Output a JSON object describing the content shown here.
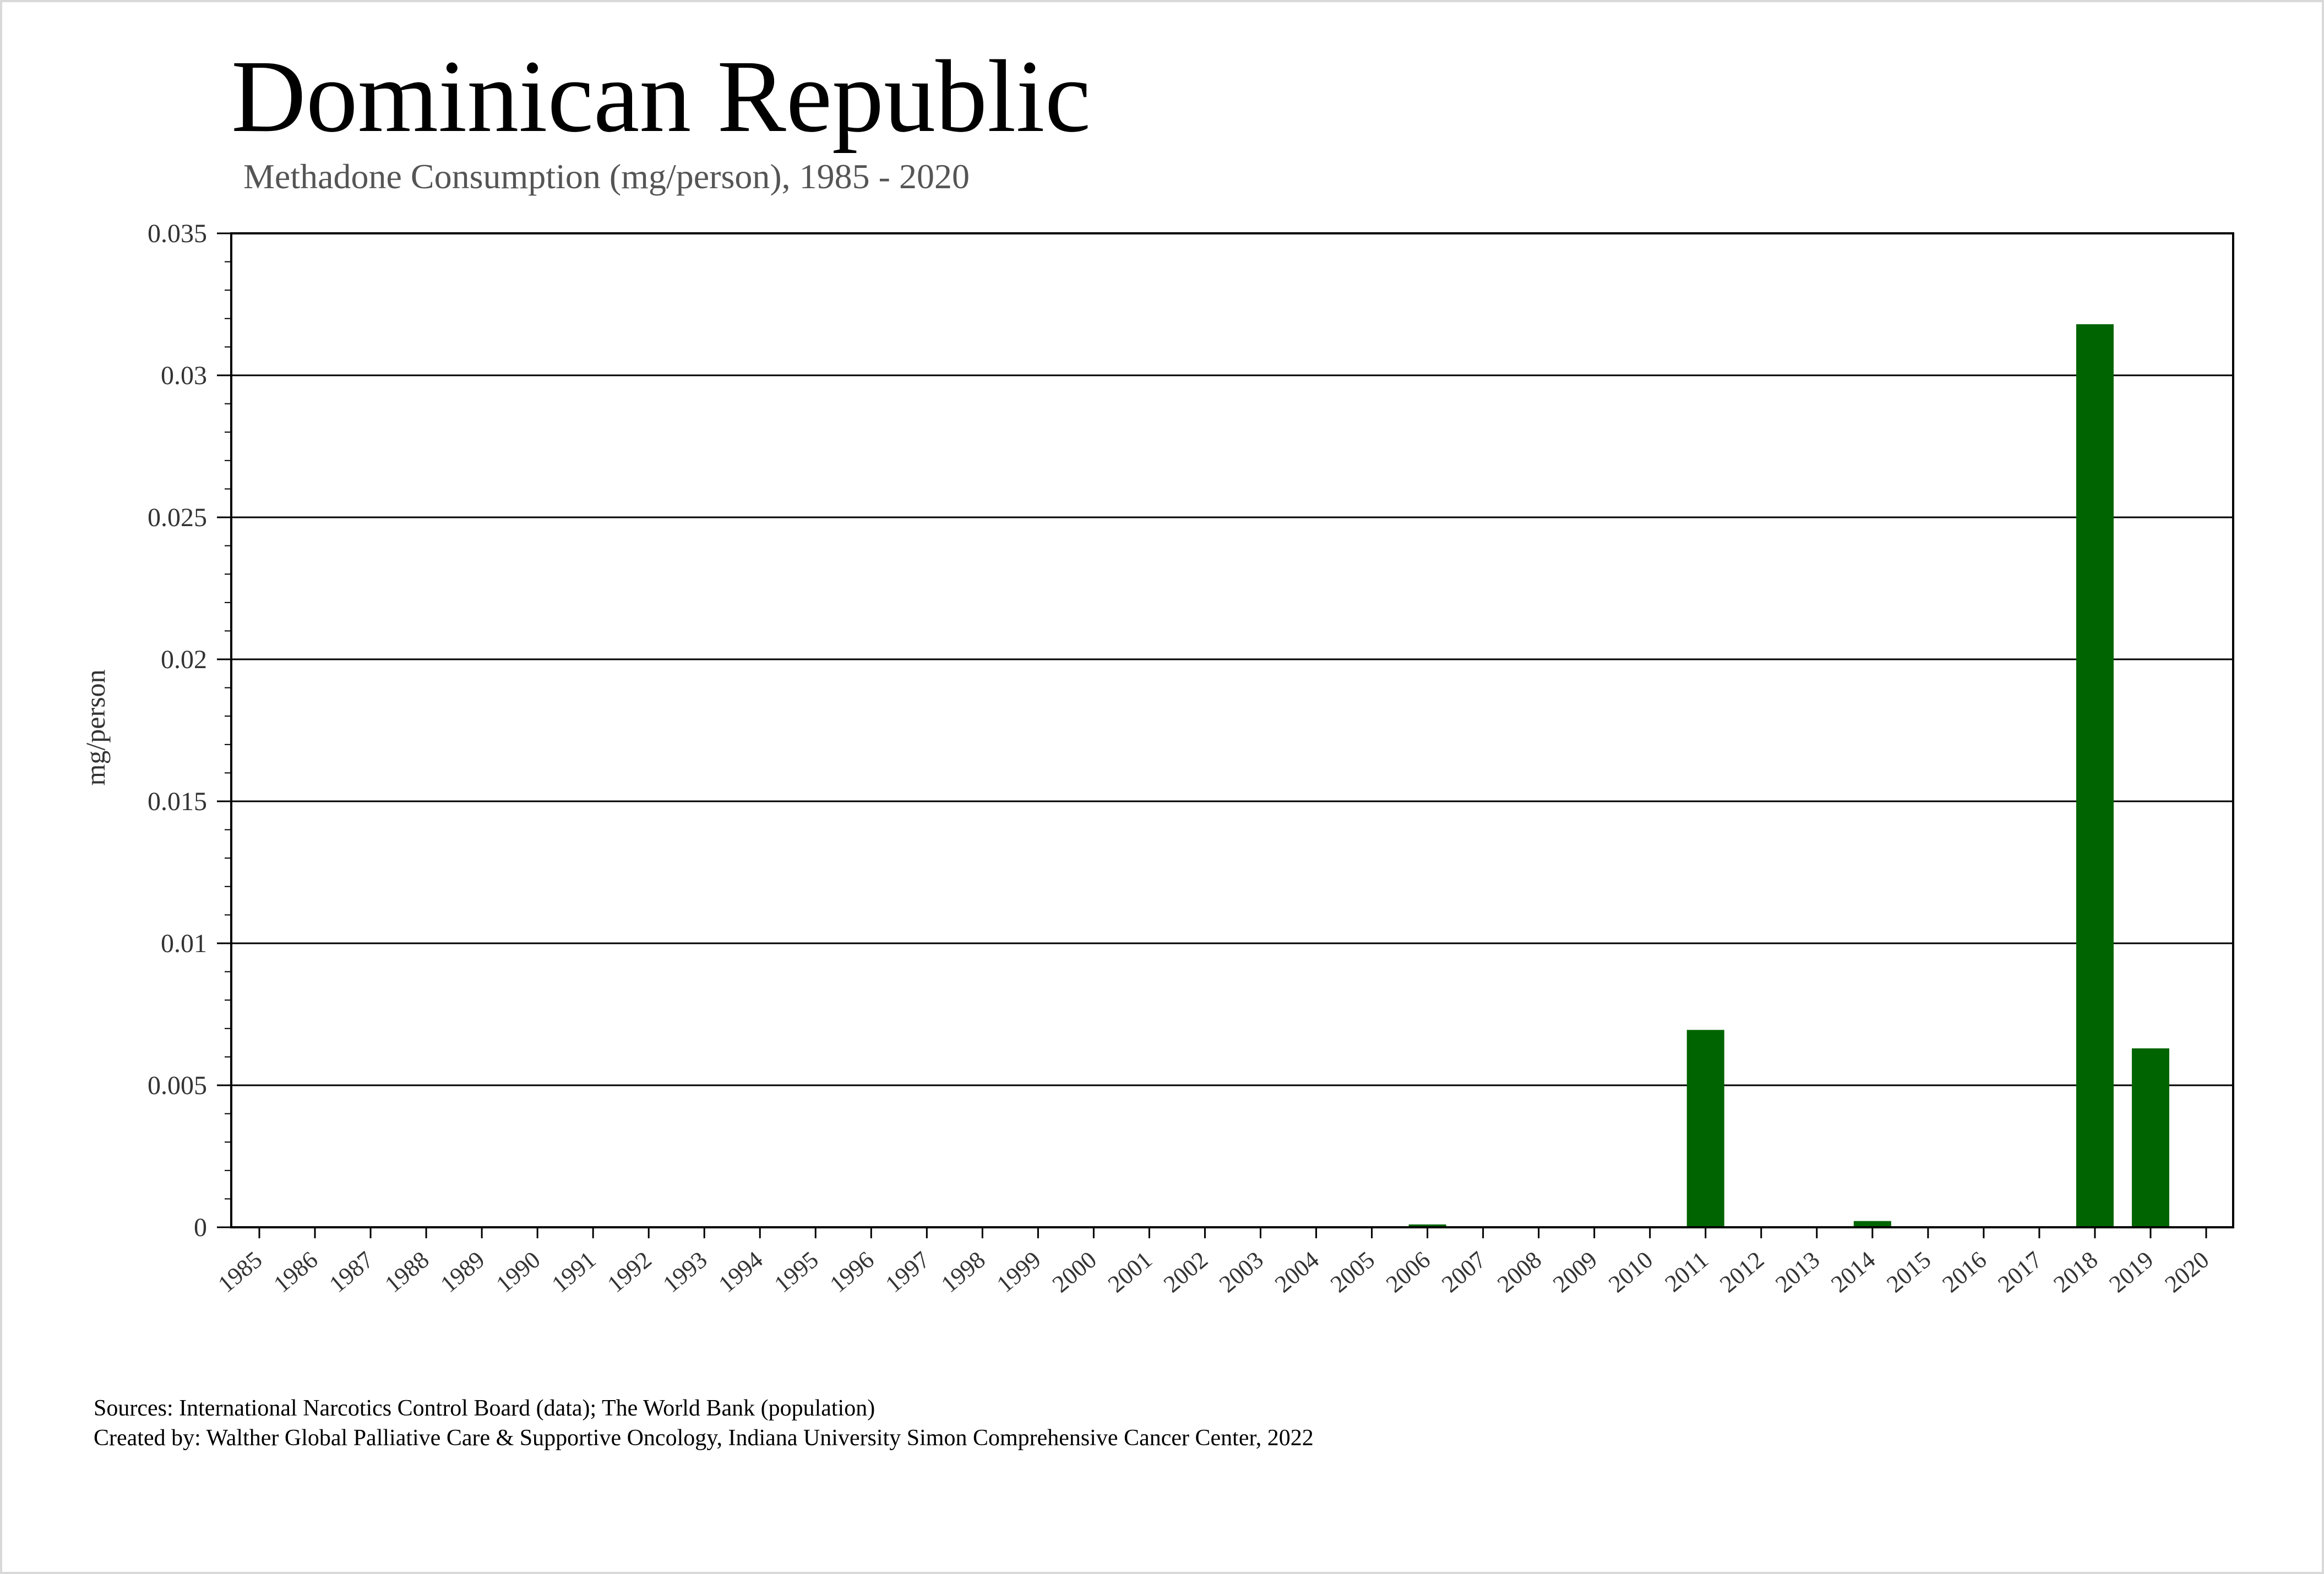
{
  "chart_data": {
    "type": "bar",
    "title": "Dominican Republic",
    "subtitle": "Methadone Consumption (mg/person), 1985 - 2020",
    "xlabel": "",
    "ylabel": "mg/person",
    "ylim": [
      0,
      0.035
    ],
    "yticks": [
      {
        "value": 0,
        "label": "0"
      },
      {
        "value": 0.005,
        "label": "0.005"
      },
      {
        "value": 0.01,
        "label": "0.01"
      },
      {
        "value": 0.015,
        "label": "0.015"
      },
      {
        "value": 0.02,
        "label": "0.02"
      },
      {
        "value": 0.025,
        "label": "0.025"
      },
      {
        "value": 0.03,
        "label": "0.03"
      },
      {
        "value": 0.035,
        "label": "0.035"
      }
    ],
    "grid": "horizontal",
    "legend": "none",
    "bar_color": "#006400",
    "categories": [
      "1985",
      "1986",
      "1987",
      "1988",
      "1989",
      "1990",
      "1991",
      "1992",
      "1993",
      "1994",
      "1995",
      "1996",
      "1997",
      "1998",
      "1999",
      "2000",
      "2001",
      "2002",
      "2003",
      "2004",
      "2005",
      "2006",
      "2007",
      "2008",
      "2009",
      "2010",
      "2011",
      "2012",
      "2013",
      "2014",
      "2015",
      "2016",
      "2017",
      "2018",
      "2019",
      "2020"
    ],
    "values": [
      0,
      0,
      0,
      0,
      0,
      0,
      0,
      0,
      0,
      0,
      0,
      0,
      0,
      0,
      0,
      0,
      0,
      0,
      0,
      0,
      0,
      0.0001,
      0,
      0,
      0,
      0,
      0.00695,
      0,
      0,
      0.00022,
      0,
      0,
      0,
      0.0318,
      0.0063,
      0
    ]
  },
  "footer": {
    "sources": "Sources: International Narcotics Control Board (data); The World Bank (population)",
    "created_by": "Created by: Walther Global Palliative Care & Supportive Oncology, Indiana University Simon Comprehensive Cancer Center, 2022"
  }
}
